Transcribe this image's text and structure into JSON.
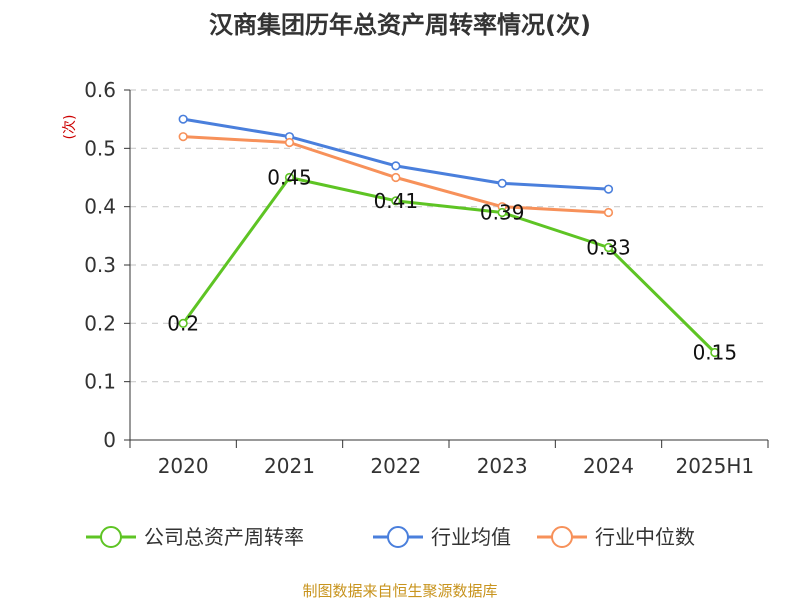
{
  "chart_data": {
    "type": "line",
    "title": "汉商集团历年总资产周转率情况(次)",
    "ylabel": "(次)",
    "xlabel": "",
    "categories": [
      "2020",
      "2021",
      "2022",
      "2023",
      "2024",
      "2025H1"
    ],
    "ylim": [
      0,
      0.6
    ],
    "yticks": [
      "0",
      "0.1",
      "0.2",
      "0.3",
      "0.4",
      "0.5",
      "0.6"
    ],
    "grid": true,
    "legend_position": "bottom",
    "series": [
      {
        "name": "公司总资产周转率",
        "color": "#5ec424",
        "values": [
          0.2,
          0.45,
          0.41,
          0.39,
          0.33,
          0.15
        ],
        "labels": [
          "0.2",
          "0.45",
          "0.41",
          "0.39",
          "0.33",
          "0.15"
        ]
      },
      {
        "name": "行业均值",
        "color": "#4a7fdc",
        "values": [
          0.55,
          0.52,
          0.47,
          0.44,
          0.43,
          null
        ]
      },
      {
        "name": "行业中位数",
        "color": "#f7915a",
        "values": [
          0.52,
          0.51,
          0.45,
          0.4,
          0.39,
          null
        ]
      }
    ]
  },
  "footer": {
    "source": "制图数据来自恒生聚源数据库"
  }
}
